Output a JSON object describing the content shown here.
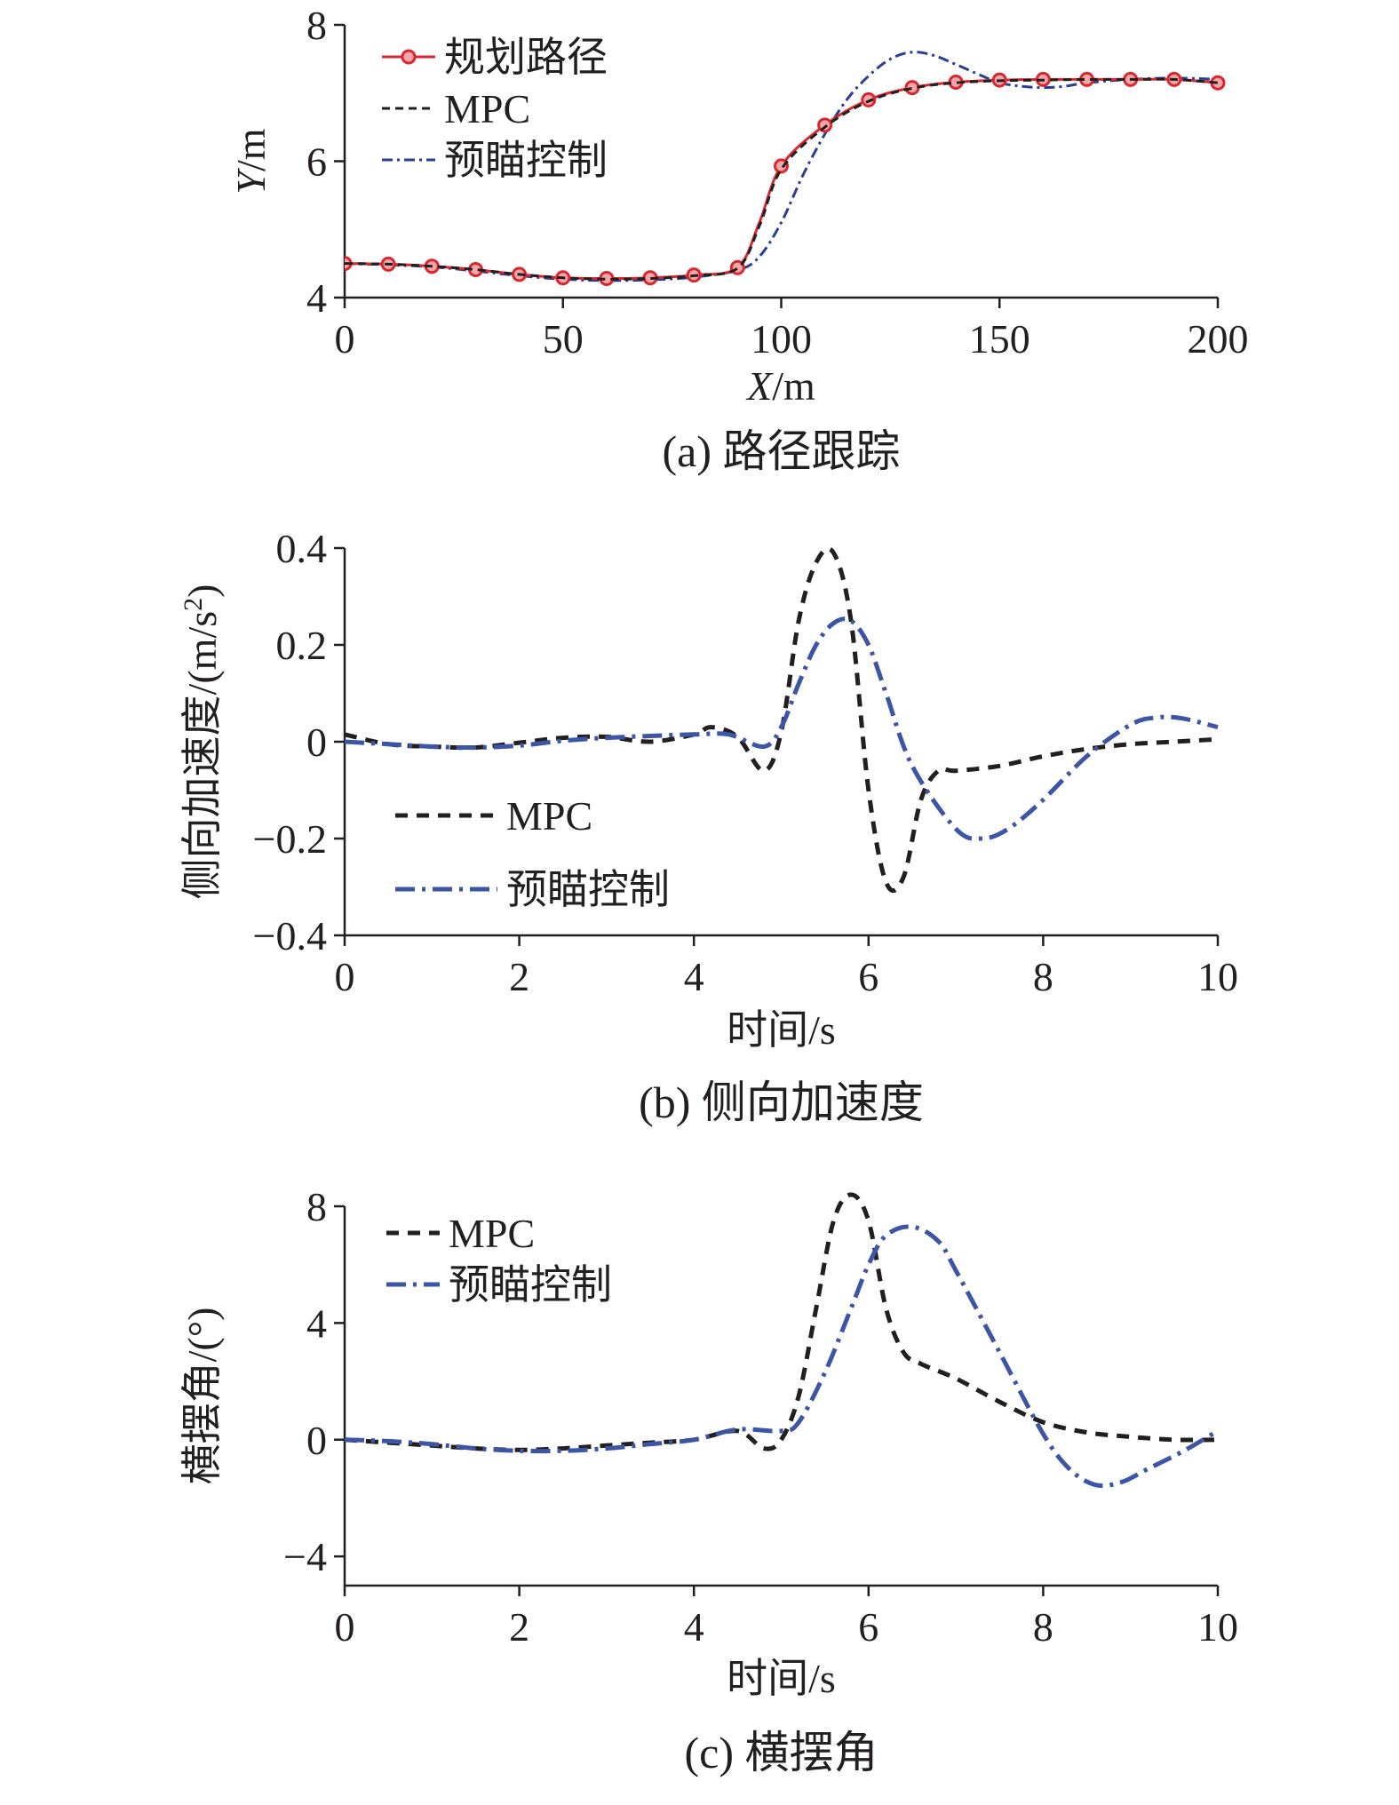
{
  "chart_data": [
    {
      "id": "a",
      "type": "line",
      "caption": "(a) 路径跟踪",
      "xlabel_italic": "X",
      "xlabel_unit": "/m",
      "ylabel_italic": "Y",
      "ylabel_unit": "/m",
      "xlim": [
        0,
        200
      ],
      "ylim": [
        4,
        8
      ],
      "xticks": [
        0,
        50,
        100,
        150,
        200
      ],
      "yticks": [
        4,
        6,
        8
      ],
      "legend_position": "top-left",
      "series": [
        {
          "name": "规划路径",
          "color": "#d7282f",
          "style": "solid-markers",
          "x": [
            0,
            10,
            20,
            30,
            40,
            50,
            60,
            70,
            80,
            90,
            95,
            100,
            110,
            120,
            130,
            140,
            150,
            160,
            170,
            180,
            190,
            200
          ],
          "y": [
            4.5,
            4.49,
            4.46,
            4.41,
            4.34,
            4.29,
            4.28,
            4.29,
            4.33,
            4.44,
            5.1,
            5.93,
            6.53,
            6.9,
            7.08,
            7.16,
            7.19,
            7.2,
            7.2,
            7.2,
            7.2,
            7.15
          ]
        },
        {
          "name": "MPC",
          "color": "#231f20",
          "style": "dashed",
          "x": [
            0,
            10,
            20,
            30,
            40,
            50,
            60,
            70,
            80,
            90,
            95,
            100,
            110,
            120,
            130,
            140,
            150,
            160,
            170,
            180,
            190,
            200
          ],
          "y": [
            4.5,
            4.49,
            4.46,
            4.41,
            4.34,
            4.29,
            4.27,
            4.28,
            4.32,
            4.43,
            5.05,
            5.88,
            6.5,
            6.88,
            7.07,
            7.15,
            7.18,
            7.19,
            7.2,
            7.2,
            7.2,
            7.15
          ]
        },
        {
          "name": "预瞄控制",
          "color": "#2a3f93",
          "style": "dash-dot",
          "x": [
            0,
            10,
            20,
            30,
            40,
            50,
            60,
            70,
            80,
            90,
            95,
            100,
            105,
            110,
            115,
            120,
            125,
            130,
            135,
            140,
            145,
            150,
            155,
            160,
            165,
            170,
            180,
            190,
            200
          ],
          "y": [
            4.5,
            4.48,
            4.45,
            4.39,
            4.32,
            4.27,
            4.25,
            4.26,
            4.3,
            4.4,
            4.6,
            5.1,
            5.8,
            6.4,
            6.9,
            7.25,
            7.5,
            7.6,
            7.55,
            7.42,
            7.28,
            7.15,
            7.1,
            7.08,
            7.1,
            7.15,
            7.2,
            7.22,
            7.2
          ]
        }
      ]
    },
    {
      "id": "b",
      "type": "line",
      "caption": "(b) 侧向加速度",
      "xlabel": "时间/s",
      "ylabel": "侧向加速度/(m/s",
      "ylabel_sup": "2",
      "ylabel_close": ")",
      "xlim": [
        0,
        10
      ],
      "ylim": [
        -0.4,
        0.4
      ],
      "xticks": [
        0,
        2,
        4,
        6,
        8,
        10
      ],
      "yticks": [
        -0.4,
        -0.2,
        0,
        0.2,
        0.4
      ],
      "ytick_labels": [
        "−0.4",
        "−0.2",
        "0",
        "0.2",
        "0.4"
      ],
      "legend_position": "bottom-left",
      "series": [
        {
          "name": "MPC",
          "color": "#231f20",
          "style": "dashed",
          "x": [
            0,
            0.5,
            1,
            1.5,
            2,
            2.5,
            3,
            3.5,
            4,
            4.2,
            4.5,
            4.8,
            5,
            5.2,
            5.4,
            5.6,
            5.8,
            6,
            6.2,
            6.4,
            6.6,
            6.8,
            7,
            7.5,
            8,
            8.5,
            9,
            9.5,
            10
          ],
          "y": [
            0.015,
            -0.005,
            -0.01,
            -0.012,
            -0.002,
            0.008,
            0.01,
            0.0,
            0.015,
            0.03,
            0.01,
            -0.06,
            0.02,
            0.25,
            0.37,
            0.39,
            0.25,
            -0.1,
            -0.29,
            -0.28,
            -0.12,
            -0.06,
            -0.06,
            -0.05,
            -0.03,
            -0.015,
            -0.005,
            0.0,
            0.005
          ]
        },
        {
          "name": "预瞄控制",
          "color": "#3d55a5",
          "style": "dash-dot",
          "x": [
            0,
            0.5,
            1,
            1.5,
            2,
            2.5,
            3,
            3.5,
            4,
            4.4,
            4.8,
            5,
            5.2,
            5.4,
            5.6,
            5.8,
            6,
            6.2,
            6.5,
            7,
            7.3,
            7.6,
            8,
            8.5,
            9,
            9.3,
            9.6,
            10
          ],
          "y": [
            0.0,
            -0.005,
            -0.01,
            -0.012,
            -0.008,
            0.002,
            0.008,
            0.012,
            0.015,
            0.015,
            -0.01,
            0.03,
            0.12,
            0.2,
            0.245,
            0.25,
            0.2,
            0.1,
            -0.05,
            -0.18,
            -0.2,
            -0.18,
            -0.12,
            -0.03,
            0.035,
            0.05,
            0.048,
            0.03
          ]
        }
      ]
    },
    {
      "id": "c",
      "type": "line",
      "caption": "(c) 横摆角",
      "xlabel": "时间/s",
      "ylabel": "横摆角/(°)",
      "xlim": [
        0,
        10
      ],
      "ylim": [
        -5,
        8
      ],
      "xticks": [
        0,
        2,
        4,
        6,
        8,
        10
      ],
      "yticks": [
        -4,
        0,
        4,
        8
      ],
      "ytick_labels": [
        "−4",
        "0",
        "4",
        "8"
      ],
      "legend_position": "top-left",
      "series": [
        {
          "name": "MPC",
          "color": "#231f20",
          "style": "dashed",
          "x": [
            0,
            0.5,
            1,
            1.5,
            2,
            2.5,
            3,
            3.5,
            4,
            4.5,
            4.8,
            5,
            5.2,
            5.4,
            5.6,
            5.8,
            6,
            6.2,
            6.4,
            6.6,
            7,
            7.5,
            8,
            8.5,
            9,
            9.5,
            10
          ],
          "y": [
            0.0,
            -0.1,
            -0.2,
            -0.3,
            -0.35,
            -0.3,
            -0.2,
            -0.1,
            0.0,
            0.3,
            -0.3,
            0.0,
            1.5,
            4.5,
            7.5,
            8.4,
            7.5,
            4.5,
            3.0,
            2.6,
            2.1,
            1.3,
            0.6,
            0.25,
            0.1,
            0.0,
            0.0
          ]
        },
        {
          "name": "预瞄控制",
          "color": "#3d55a5",
          "style": "dash-dot",
          "x": [
            0,
            0.5,
            1,
            1.5,
            2,
            2.5,
            3,
            3.5,
            4,
            4.5,
            5,
            5.2,
            5.5,
            5.8,
            6,
            6.2,
            6.5,
            6.8,
            7,
            7.5,
            8,
            8.3,
            8.6,
            8.9,
            9.2,
            9.6,
            10
          ],
          "y": [
            0.0,
            -0.05,
            -0.15,
            -0.3,
            -0.38,
            -0.38,
            -0.3,
            -0.15,
            0.0,
            0.35,
            0.3,
            0.6,
            2.3,
            4.5,
            6.0,
            7.0,
            7.3,
            6.8,
            5.8,
            3.0,
            0.2,
            -1.0,
            -1.55,
            -1.45,
            -1.0,
            -0.4,
            0.3
          ]
        }
      ]
    }
  ]
}
